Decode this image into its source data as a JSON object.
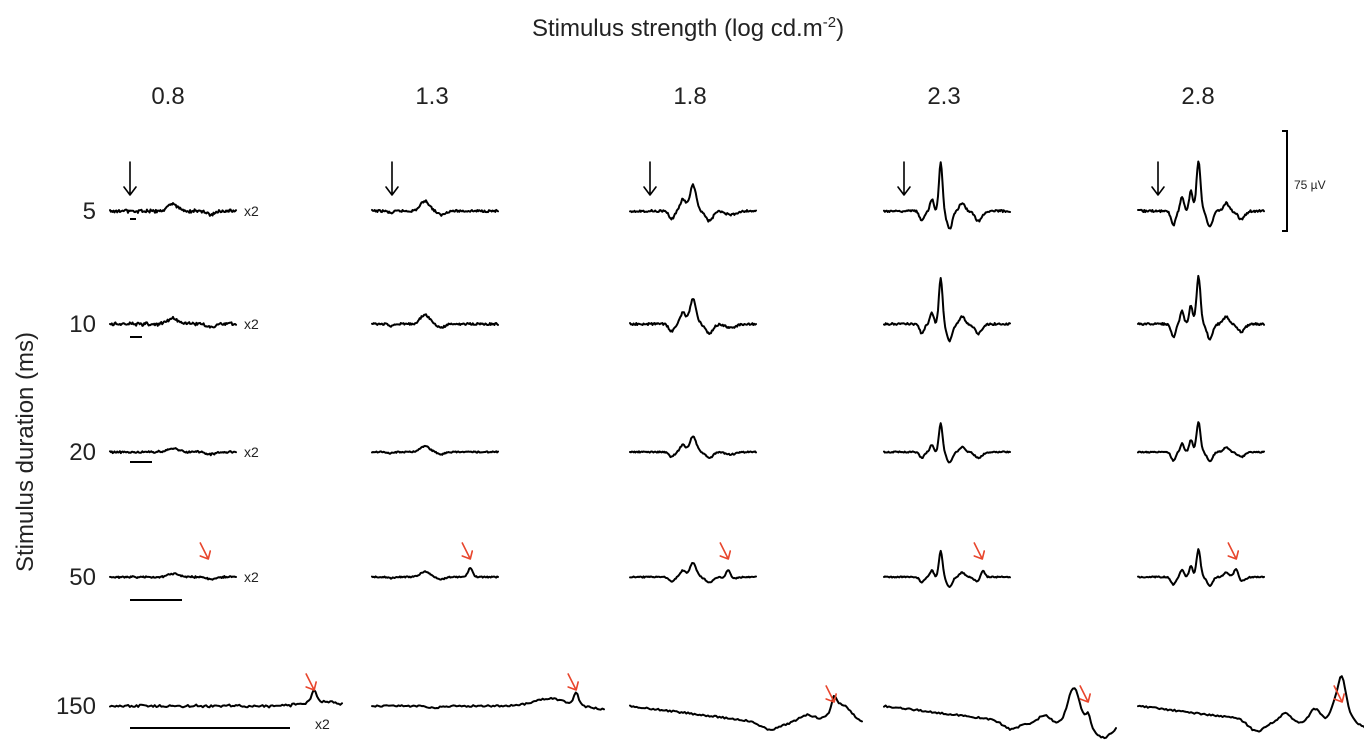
{
  "chart_data": {
    "type": "line",
    "title": "Stimulus strength (log cd.m-2)",
    "title_main": "Stimulus strength (log cd.m",
    "title_sup": "-2",
    "title_end": ")",
    "ylabel": "Stimulus duration (ms)",
    "columns": [
      "0.8",
      "1.3",
      "1.8",
      "2.3",
      "2.8"
    ],
    "rows": [
      "5",
      "10",
      "20",
      "50",
      "150"
    ],
    "gain_label": "x2",
    "scale_bar": "75 µV",
    "colors": {
      "trace": "#000000",
      "off_arrow": "#e8452c",
      "onset_arrow": "#000000"
    },
    "panels": [
      {
        "col": 0,
        "row": 0,
        "gain": true,
        "stim_bar": true,
        "onset_arrow": true,
        "off_arrow": false,
        "shape": "noise"
      },
      {
        "col": 1,
        "row": 0,
        "gain": false,
        "stim_bar": false,
        "onset_arrow": true,
        "off_arrow": false,
        "shape": "small"
      },
      {
        "col": 2,
        "row": 0,
        "gain": false,
        "stim_bar": false,
        "onset_arrow": true,
        "off_arrow": false,
        "shape": "medium"
      },
      {
        "col": 3,
        "row": 0,
        "gain": false,
        "stim_bar": false,
        "onset_arrow": true,
        "off_arrow": false,
        "shape": "large"
      },
      {
        "col": 4,
        "row": 0,
        "gain": false,
        "stim_bar": false,
        "onset_arrow": true,
        "off_arrow": false,
        "shape": "large2"
      },
      {
        "col": 0,
        "row": 1,
        "gain": true,
        "stim_bar": true,
        "onset_arrow": false,
        "off_arrow": false,
        "shape": "noise"
      },
      {
        "col": 1,
        "row": 1,
        "gain": false,
        "stim_bar": false,
        "onset_arrow": false,
        "off_arrow": false,
        "shape": "small"
      },
      {
        "col": 2,
        "row": 1,
        "gain": false,
        "stim_bar": false,
        "onset_arrow": false,
        "off_arrow": false,
        "shape": "medium"
      },
      {
        "col": 3,
        "row": 1,
        "gain": false,
        "stim_bar": false,
        "onset_arrow": false,
        "off_arrow": false,
        "shape": "large"
      },
      {
        "col": 4,
        "row": 1,
        "gain": false,
        "stim_bar": false,
        "onset_arrow": false,
        "off_arrow": false,
        "shape": "large2"
      },
      {
        "col": 0,
        "row": 2,
        "gain": true,
        "stim_bar": true,
        "onset_arrow": false,
        "off_arrow": false,
        "shape": "noise"
      },
      {
        "col": 1,
        "row": 2,
        "gain": false,
        "stim_bar": false,
        "onset_arrow": false,
        "off_arrow": false,
        "shape": "small"
      },
      {
        "col": 2,
        "row": 2,
        "gain": false,
        "stim_bar": false,
        "onset_arrow": false,
        "off_arrow": false,
        "shape": "medium"
      },
      {
        "col": 3,
        "row": 2,
        "gain": false,
        "stim_bar": false,
        "onset_arrow": false,
        "off_arrow": false,
        "shape": "large"
      },
      {
        "col": 4,
        "row": 2,
        "gain": false,
        "stim_bar": false,
        "onset_arrow": false,
        "off_arrow": false,
        "shape": "large2"
      },
      {
        "col": 0,
        "row": 3,
        "gain": true,
        "stim_bar": true,
        "onset_arrow": false,
        "off_arrow": true,
        "shape": "noise"
      },
      {
        "col": 1,
        "row": 3,
        "gain": false,
        "stim_bar": false,
        "onset_arrow": false,
        "off_arrow": true,
        "shape": "small"
      },
      {
        "col": 2,
        "row": 3,
        "gain": false,
        "stim_bar": false,
        "onset_arrow": false,
        "off_arrow": true,
        "shape": "medium"
      },
      {
        "col": 3,
        "row": 3,
        "gain": false,
        "stim_bar": false,
        "onset_arrow": false,
        "off_arrow": true,
        "shape": "large"
      },
      {
        "col": 4,
        "row": 3,
        "gain": false,
        "stim_bar": false,
        "onset_arrow": false,
        "off_arrow": true,
        "shape": "large2"
      },
      {
        "col": 0,
        "row": 4,
        "gain": true,
        "stim_bar": true,
        "onset_arrow": false,
        "off_arrow": true,
        "shape": "noise"
      },
      {
        "col": 1,
        "row": 4,
        "gain": false,
        "stim_bar": false,
        "onset_arrow": false,
        "off_arrow": true,
        "shape": "small"
      },
      {
        "col": 2,
        "row": 4,
        "gain": false,
        "stim_bar": false,
        "onset_arrow": false,
        "off_arrow": true,
        "shape": "medium"
      },
      {
        "col": 3,
        "row": 4,
        "gain": false,
        "stim_bar": false,
        "onset_arrow": false,
        "off_arrow": true,
        "shape": "large"
      },
      {
        "col": 4,
        "row": 4,
        "gain": false,
        "stim_bar": false,
        "onset_arrow": false,
        "off_arrow": true,
        "shape": "large2"
      }
    ]
  }
}
